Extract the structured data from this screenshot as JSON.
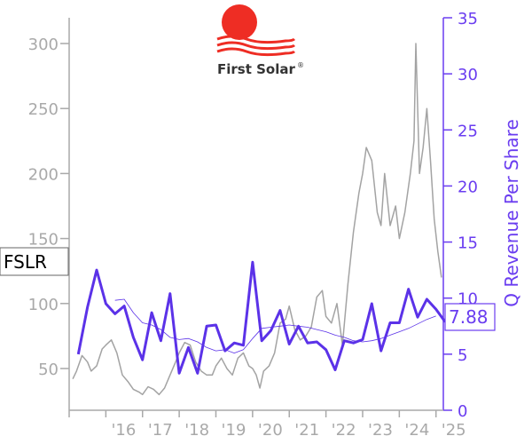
{
  "chart_data": {
    "type": "line",
    "ticker": "FSLR",
    "logo": {
      "text": "First Solar",
      "mark": "®"
    },
    "xlabel": "",
    "ylabel_left": "",
    "ylabel_right": "Q Revenue Per Share",
    "x_tick_labels": [
      "'16",
      "'17",
      "'18",
      "'19",
      "'20",
      "'21",
      "'22",
      "'23",
      "'24",
      "'25"
    ],
    "y_left_ticks": [
      50,
      100,
      150,
      200,
      250,
      300
    ],
    "y_right_ticks": [
      0,
      5,
      10,
      15,
      20,
      25,
      30,
      35
    ],
    "ylim_left": [
      20,
      320
    ],
    "ylim_right": [
      0,
      35
    ],
    "xlim": [
      2015.0,
      2025.2
    ],
    "last_value_label": "7.88",
    "colors": {
      "price": "#999999",
      "revenue": "#5b32e8",
      "axis_right": "#6a3df0",
      "axis_left": "#a9a9a9",
      "logo_sun": "#ee2d24",
      "logo_waves": "#ee2d24"
    },
    "series": [
      {
        "name": "",
        "role": "price",
        "axis": "left",
        "x": [
          2015.1,
          2015.2,
          2015.35,
          2015.5,
          2015.6,
          2015.75,
          2015.9,
          2016.0,
          2016.15,
          2016.3,
          2016.45,
          2016.6,
          2016.75,
          2016.9,
          2017.0,
          2017.15,
          2017.3,
          2017.45,
          2017.6,
          2017.75,
          2017.9,
          2018.0,
          2018.15,
          2018.3,
          2018.45,
          2018.6,
          2018.75,
          2018.9,
          2019.0,
          2019.15,
          2019.3,
          2019.45,
          2019.6,
          2019.75,
          2019.9,
          2020.0,
          2020.1,
          2020.2,
          2020.3,
          2020.45,
          2020.6,
          2020.75,
          2020.9,
          2021.0,
          2021.15,
          2021.3,
          2021.45,
          2021.6,
          2021.75,
          2021.9,
          2022.0,
          2022.15,
          2022.3,
          2022.45,
          2022.6,
          2022.75,
          2022.9,
          2023.0,
          2023.1,
          2023.25,
          2023.4,
          2023.5,
          2023.6,
          2023.75,
          2023.9,
          2024.0,
          2024.15,
          2024.3,
          2024.4,
          2024.45,
          2024.55,
          2024.65,
          2024.75,
          2024.85,
          2024.95,
          2025.05,
          2025.15
        ],
        "values": [
          42,
          48,
          60,
          55,
          48,
          52,
          65,
          68,
          72,
          62,
          45,
          40,
          34,
          32,
          30,
          36,
          34,
          30,
          35,
          45,
          55,
          62,
          70,
          68,
          55,
          48,
          45,
          45,
          52,
          58,
          50,
          45,
          58,
          62,
          52,
          50,
          45,
          35,
          48,
          52,
          62,
          85,
          88,
          98,
          80,
          72,
          75,
          82,
          105,
          110,
          90,
          85,
          100,
          68,
          115,
          155,
          185,
          200,
          220,
          210,
          170,
          160,
          200,
          160,
          175,
          150,
          170,
          200,
          225,
          300,
          200,
          220,
          250,
          210,
          165,
          140,
          120
        ]
      },
      {
        "name": "",
        "role": "revenue_ma",
        "axis": "right",
        "x": [
          2016.25,
          2016.5,
          2016.75,
          2017.0,
          2017.25,
          2017.5,
          2017.75,
          2018.0,
          2018.25,
          2018.5,
          2018.75,
          2019.0,
          2019.25,
          2019.5,
          2019.75,
          2020.0,
          2020.25,
          2020.5,
          2020.75,
          2021.0,
          2021.25,
          2021.5,
          2021.75,
          2022.0,
          2022.25,
          2022.5,
          2022.75,
          2023.0,
          2023.25,
          2023.5,
          2023.75,
          2024.0,
          2024.25,
          2024.5,
          2024.75,
          2025.0
        ],
        "values": [
          9.8,
          9.9,
          8.7,
          7.8,
          7.6,
          7.2,
          6.5,
          6.3,
          6.4,
          6.1,
          5.6,
          5.3,
          5.4,
          5.1,
          5.4,
          6.4,
          7.3,
          7.4,
          7.5,
          7.6,
          7.5,
          7.4,
          7.2,
          7.0,
          6.7,
          6.5,
          6.2,
          6.1,
          6.2,
          6.4,
          6.7,
          7.0,
          7.3,
          7.7,
          8.1,
          8.4
        ]
      },
      {
        "name": "",
        "role": "revenue",
        "axis": "right",
        "x": [
          2015.25,
          2015.5,
          2015.75,
          2016.0,
          2016.25,
          2016.5,
          2016.75,
          2017.0,
          2017.25,
          2017.5,
          2017.75,
          2018.0,
          2018.25,
          2018.5,
          2018.75,
          2019.0,
          2019.25,
          2019.5,
          2019.75,
          2020.0,
          2020.25,
          2020.5,
          2020.75,
          2021.0,
          2021.25,
          2021.5,
          2021.75,
          2022.0,
          2022.25,
          2022.5,
          2022.75,
          2023.0,
          2023.25,
          2023.5,
          2023.75,
          2024.0,
          2024.25,
          2024.5,
          2024.75,
          2025.0,
          2025.25
        ],
        "values": [
          5.0,
          9.2,
          12.5,
          9.5,
          8.6,
          9.3,
          6.5,
          4.5,
          8.7,
          6.2,
          10.4,
          3.3,
          5.6,
          3.3,
          7.5,
          7.6,
          5.3,
          6.0,
          5.8,
          13.2,
          6.2,
          7.1,
          8.9,
          5.9,
          7.5,
          6.0,
          6.1,
          5.4,
          3.6,
          6.2,
          6.0,
          6.3,
          9.5,
          5.3,
          7.8,
          7.8,
          10.8,
          8.3,
          9.9,
          9.0,
          7.88
        ]
      }
    ]
  }
}
